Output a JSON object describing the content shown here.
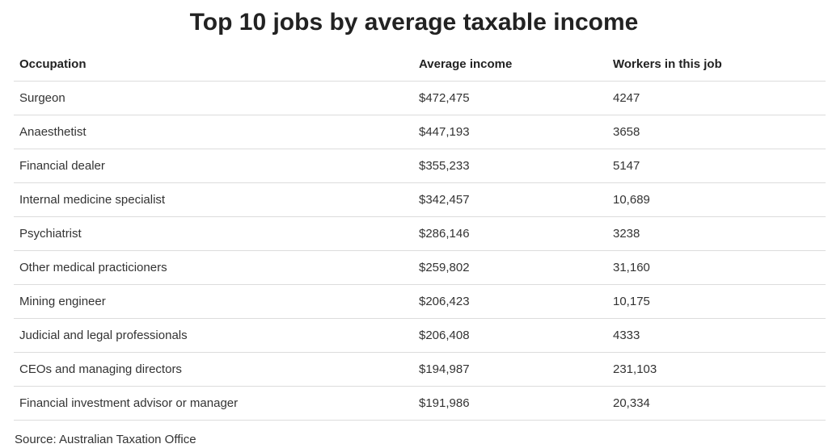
{
  "title": "Top 10 jobs by average taxable income",
  "table": {
    "headers": [
      "Occupation",
      "Average income",
      "Workers in this job"
    ],
    "rows": [
      [
        "Surgeon",
        "$472,475",
        "4247"
      ],
      [
        "Anaesthetist",
        "$447,193",
        "3658"
      ],
      [
        "Financial dealer",
        "$355,233",
        "5147"
      ],
      [
        "Internal medicine specialist",
        "$342,457",
        "10,689"
      ],
      [
        "Psychiatrist",
        "$286,146",
        "3238"
      ],
      [
        "Other medical practicioners",
        "$259,802",
        "31,160"
      ],
      [
        "Mining engineer",
        "$206,423",
        "10,175"
      ],
      [
        "Judicial and legal professionals",
        "$206,408",
        "4333"
      ],
      [
        "CEOs and managing directors",
        "$194,987",
        "231,103"
      ],
      [
        "Financial investment advisor or manager",
        "$191,986",
        "20,334"
      ]
    ]
  },
  "source": "Source: Australian Taxation Office"
}
